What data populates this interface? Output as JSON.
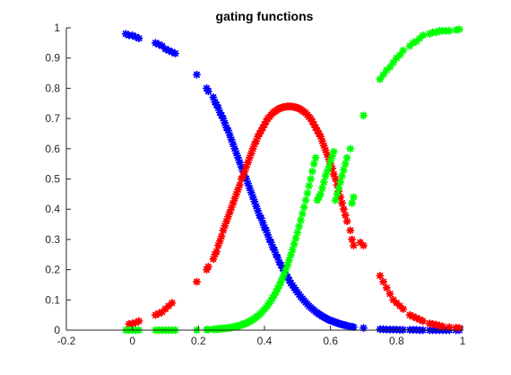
{
  "chart_data": {
    "type": "scatter",
    "title": "gating functions",
    "xlabel": "",
    "ylabel": "",
    "xlim": [
      -0.2,
      1
    ],
    "ylim": [
      0,
      1
    ],
    "grid": false,
    "legend": "none",
    "box": "left-bottom",
    "marker": "asterisk",
    "x_ticks": [
      -0.2,
      0,
      0.2,
      0.4,
      0.6,
      0.8,
      1
    ],
    "x_tick_labels": [
      "-0.2",
      "0",
      "0.2",
      "0.4",
      "0.6",
      "0.8",
      "1"
    ],
    "y_ticks": [
      0,
      0.1,
      0.2,
      0.3,
      0.4,
      0.5,
      0.6,
      0.7,
      0.8,
      0.9,
      1
    ],
    "y_tick_labels": [
      "0",
      "0.1",
      "0.2",
      "0.3",
      "0.4",
      "0.5",
      "0.6",
      "0.7",
      "0.8",
      "0.9",
      "1"
    ],
    "series": [
      {
        "color": "#0000ff",
        "x": [
          -0.02,
          -0.01,
          0.0,
          0.01,
          0.02,
          0.07,
          0.08,
          0.09,
          0.1,
          0.11,
          0.12,
          0.13,
          0.195,
          0.225,
          0.23,
          0.245,
          0.25,
          0.255,
          0.26,
          0.265,
          0.27,
          0.275,
          0.28,
          0.285,
          0.29,
          0.295,
          0.3,
          0.305,
          0.31,
          0.315,
          0.32,
          0.325,
          0.33,
          0.335,
          0.34,
          0.345,
          0.35,
          0.355,
          0.36,
          0.365,
          0.37,
          0.375,
          0.38,
          0.385,
          0.39,
          0.395,
          0.4,
          0.405,
          0.41,
          0.415,
          0.42,
          0.425,
          0.43,
          0.435,
          0.44,
          0.445,
          0.45,
          0.455,
          0.46,
          0.465,
          0.47,
          0.475,
          0.48,
          0.485,
          0.49,
          0.495,
          0.5,
          0.505,
          0.51,
          0.515,
          0.52,
          0.525,
          0.53,
          0.535,
          0.54,
          0.545,
          0.55,
          0.555,
          0.56,
          0.565,
          0.57,
          0.575,
          0.58,
          0.585,
          0.59,
          0.595,
          0.6,
          0.605,
          0.61,
          0.615,
          0.62,
          0.625,
          0.63,
          0.635,
          0.64,
          0.645,
          0.65,
          0.66,
          0.665,
          0.67,
          0.7,
          0.75,
          0.76,
          0.77,
          0.78,
          0.79,
          0.8,
          0.81,
          0.82,
          0.84,
          0.85,
          0.86,
          0.87,
          0.88,
          0.9,
          0.91,
          0.92,
          0.93,
          0.94,
          0.95,
          0.96,
          0.98,
          0.99
        ],
        "y": [
          0.98,
          0.975,
          0.975,
          0.97,
          0.965,
          0.95,
          0.945,
          0.94,
          0.93,
          0.925,
          0.92,
          0.915,
          0.845,
          0.8,
          0.79,
          0.77,
          0.755,
          0.745,
          0.735,
          0.72,
          0.71,
          0.7,
          0.685,
          0.67,
          0.66,
          0.645,
          0.63,
          0.615,
          0.6,
          0.585,
          0.57,
          0.555,
          0.54,
          0.525,
          0.51,
          0.5,
          0.485,
          0.47,
          0.455,
          0.44,
          0.425,
          0.41,
          0.395,
          0.38,
          0.37,
          0.355,
          0.34,
          0.33,
          0.315,
          0.3,
          0.29,
          0.275,
          0.265,
          0.25,
          0.24,
          0.225,
          0.215,
          0.205,
          0.195,
          0.185,
          0.175,
          0.165,
          0.155,
          0.148,
          0.14,
          0.132,
          0.125,
          0.118,
          0.11,
          0.104,
          0.098,
          0.092,
          0.086,
          0.08,
          0.075,
          0.07,
          0.066,
          0.061,
          0.057,
          0.053,
          0.05,
          0.046,
          0.043,
          0.04,
          0.037,
          0.034,
          0.032,
          0.03,
          0.028,
          0.026,
          0.024,
          0.022,
          0.02,
          0.019,
          0.017,
          0.016,
          0.015,
          0.012,
          0.011,
          0.01,
          0.007,
          0.003,
          0.003,
          0.002,
          0.002,
          0.002,
          0.002,
          0.001,
          0.001,
          0.001,
          0.001,
          0.001,
          0.0,
          0.0,
          0.0,
          0.0,
          0.0,
          0.0,
          0.0,
          0.0,
          0.0,
          0.0,
          0.0
        ]
      },
      {
        "color": "#ff0000",
        "x": [
          -0.01,
          0.0,
          0.01,
          0.02,
          0.07,
          0.08,
          0.09,
          0.1,
          0.11,
          0.12,
          0.195,
          0.225,
          0.23,
          0.245,
          0.25,
          0.255,
          0.26,
          0.265,
          0.27,
          0.275,
          0.28,
          0.285,
          0.29,
          0.295,
          0.3,
          0.305,
          0.31,
          0.315,
          0.32,
          0.325,
          0.33,
          0.335,
          0.34,
          0.345,
          0.35,
          0.355,
          0.36,
          0.365,
          0.37,
          0.375,
          0.38,
          0.385,
          0.39,
          0.395,
          0.4,
          0.405,
          0.41,
          0.415,
          0.42,
          0.425,
          0.43,
          0.435,
          0.44,
          0.445,
          0.45,
          0.455,
          0.46,
          0.465,
          0.47,
          0.475,
          0.48,
          0.485,
          0.49,
          0.495,
          0.5,
          0.505,
          0.51,
          0.515,
          0.52,
          0.525,
          0.53,
          0.535,
          0.54,
          0.545,
          0.55,
          0.555,
          0.56,
          0.565,
          0.57,
          0.575,
          0.58,
          0.585,
          0.59,
          0.595,
          0.6,
          0.605,
          0.61,
          0.615,
          0.62,
          0.625,
          0.63,
          0.635,
          0.64,
          0.645,
          0.65,
          0.66,
          0.665,
          0.67,
          0.69,
          0.7,
          0.75,
          0.76,
          0.77,
          0.78,
          0.79,
          0.8,
          0.81,
          0.82,
          0.84,
          0.85,
          0.86,
          0.87,
          0.88,
          0.9,
          0.91,
          0.92,
          0.93,
          0.94,
          0.96,
          0.98,
          0.99
        ],
        "y": [
          0.02,
          0.022,
          0.025,
          0.03,
          0.05,
          0.055,
          0.06,
          0.07,
          0.08,
          0.09,
          0.16,
          0.2,
          0.21,
          0.235,
          0.25,
          0.26,
          0.28,
          0.295,
          0.31,
          0.33,
          0.345,
          0.36,
          0.375,
          0.39,
          0.405,
          0.42,
          0.435,
          0.45,
          0.465,
          0.48,
          0.5,
          0.51,
          0.525,
          0.54,
          0.555,
          0.57,
          0.585,
          0.6,
          0.615,
          0.625,
          0.64,
          0.65,
          0.66,
          0.67,
          0.68,
          0.69,
          0.7,
          0.705,
          0.712,
          0.718,
          0.722,
          0.726,
          0.73,
          0.733,
          0.735,
          0.737,
          0.738,
          0.739,
          0.74,
          0.74,
          0.74,
          0.739,
          0.738,
          0.737,
          0.735,
          0.733,
          0.73,
          0.726,
          0.722,
          0.718,
          0.712,
          0.705,
          0.7,
          0.69,
          0.68,
          0.67,
          0.66,
          0.65,
          0.64,
          0.625,
          0.61,
          0.595,
          0.58,
          0.565,
          0.55,
          0.535,
          0.515,
          0.5,
          0.48,
          0.46,
          0.44,
          0.42,
          0.4,
          0.38,
          0.36,
          0.33,
          0.3,
          0.28,
          0.29,
          0.28,
          0.18,
          0.16,
          0.14,
          0.12,
          0.1,
          0.09,
          0.08,
          0.07,
          0.05,
          0.045,
          0.04,
          0.035,
          0.03,
          0.022,
          0.02,
          0.018,
          0.015,
          0.012,
          0.01,
          0.008,
          0.007
        ]
      },
      {
        "color": "#00ff00",
        "x": [
          -0.02,
          -0.01,
          0.0,
          0.01,
          0.02,
          0.07,
          0.08,
          0.09,
          0.1,
          0.11,
          0.12,
          0.13,
          0.195,
          0.225,
          0.23,
          0.245,
          0.25,
          0.255,
          0.26,
          0.265,
          0.27,
          0.275,
          0.28,
          0.285,
          0.29,
          0.295,
          0.3,
          0.305,
          0.31,
          0.315,
          0.32,
          0.325,
          0.33,
          0.335,
          0.34,
          0.345,
          0.35,
          0.355,
          0.36,
          0.365,
          0.37,
          0.375,
          0.38,
          0.385,
          0.39,
          0.395,
          0.4,
          0.405,
          0.41,
          0.415,
          0.42,
          0.425,
          0.43,
          0.435,
          0.44,
          0.445,
          0.45,
          0.455,
          0.46,
          0.465,
          0.47,
          0.475,
          0.48,
          0.485,
          0.49,
          0.495,
          0.5,
          0.505,
          0.51,
          0.515,
          0.52,
          0.525,
          0.53,
          0.535,
          0.54,
          0.545,
          0.55,
          0.555,
          0.56,
          0.565,
          0.57,
          0.575,
          0.58,
          0.585,
          0.59,
          0.595,
          0.6,
          0.605,
          0.61,
          0.615,
          0.62,
          0.625,
          0.63,
          0.635,
          0.64,
          0.645,
          0.65,
          0.66,
          0.665,
          0.67,
          0.7,
          0.75,
          0.76,
          0.77,
          0.78,
          0.79,
          0.8,
          0.81,
          0.82,
          0.84,
          0.85,
          0.86,
          0.87,
          0.88,
          0.9,
          0.91,
          0.92,
          0.93,
          0.94,
          0.95,
          0.96,
          0.98,
          0.99
        ],
        "y": [
          0.0,
          0.0,
          0.0,
          0.0,
          0.0,
          0.0,
          0.0,
          0.0,
          0.0,
          0.0,
          0.0,
          0.0,
          0.0,
          0.002,
          0.002,
          0.003,
          0.003,
          0.003,
          0.004,
          0.004,
          0.005,
          0.005,
          0.006,
          0.006,
          0.007,
          0.008,
          0.009,
          0.01,
          0.011,
          0.012,
          0.014,
          0.015,
          0.017,
          0.019,
          0.021,
          0.023,
          0.026,
          0.029,
          0.032,
          0.035,
          0.039,
          0.043,
          0.047,
          0.052,
          0.057,
          0.063,
          0.069,
          0.075,
          0.082,
          0.09,
          0.098,
          0.107,
          0.116,
          0.126,
          0.137,
          0.148,
          0.16,
          0.173,
          0.187,
          0.201,
          0.216,
          0.232,
          0.249,
          0.266,
          0.285,
          0.304,
          0.323,
          0.343,
          0.364,
          0.385,
          0.407,
          0.43,
          0.453,
          0.477,
          0.5,
          0.525,
          0.55,
          0.57,
          0.43,
          0.44,
          0.45,
          0.47,
          0.49,
          0.51,
          0.525,
          0.54,
          0.56,
          0.575,
          0.59,
          0.43,
          0.45,
          0.47,
          0.49,
          0.51,
          0.53,
          0.55,
          0.57,
          0.6,
          0.42,
          0.44,
          0.71,
          0.83,
          0.845,
          0.86,
          0.87,
          0.885,
          0.9,
          0.91,
          0.925,
          0.94,
          0.95,
          0.955,
          0.965,
          0.975,
          0.98,
          0.985,
          0.985,
          0.99,
          0.99,
          0.99,
          0.99,
          0.993,
          0.995
        ]
      }
    ]
  }
}
